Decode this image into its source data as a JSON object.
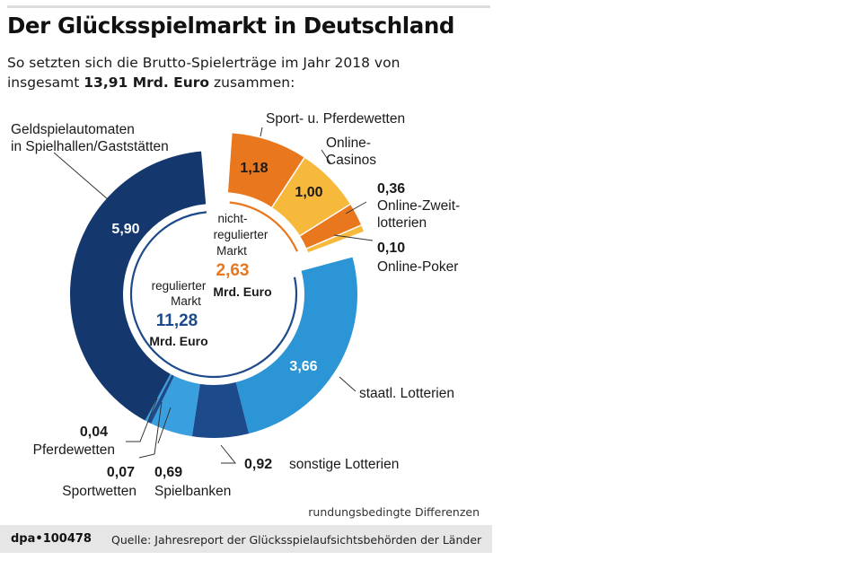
{
  "header": {
    "title": "Der Glücksspielmarkt in Deutschland",
    "subtitle_line1": "So setzten sich die Brutto-Spielerträge im Jahr 2018 von",
    "subtitle_pre": "insgesamt ",
    "subtitle_bold": "13,91 Mrd. Euro",
    "subtitle_post": " zusammen:"
  },
  "chart_data": {
    "type": "pie",
    "variant": "donut",
    "title": "Der Glücksspielmarkt in Deutschland",
    "unit": "Mrd. Euro",
    "total": 13.91,
    "groups": [
      {
        "name": "regulierter Markt",
        "label_line1": "regulierter",
        "label_line2": "Markt",
        "total": 11.28,
        "total_text": "11,28",
        "unit_text": "Mrd. Euro",
        "segments": [
          {
            "name": "Geldspielautomaten in Spielhallen/Gaststätten",
            "label_line1": "Geldspielautomaten",
            "label_line2": "in Spielhallen/Gaststätten",
            "value": 5.9,
            "value_text": "5,90",
            "color": "#14376e"
          },
          {
            "name": "staatl. Lotterien",
            "value": 3.66,
            "value_text": "3,66",
            "color": "#2b95d6"
          },
          {
            "name": "sonstige Lotterien",
            "value": 0.92,
            "value_text": "0,92",
            "color": "#1d4a8a"
          },
          {
            "name": "Spielbanken",
            "value": 0.69,
            "value_text": "0,69",
            "color": "#3a9fde"
          },
          {
            "name": "Sportwetten",
            "value": 0.07,
            "value_text": "0,07",
            "color": "#1d4a8a"
          },
          {
            "name": "Pferdewetten",
            "value": 0.04,
            "value_text": "0,04",
            "color": "#3a9fde"
          }
        ]
      },
      {
        "name": "nicht-regulierter Markt",
        "label_line1": "nicht-",
        "label_line2": "regulierter",
        "label_line3": "Markt",
        "total": 2.63,
        "total_text": "2,63",
        "unit_text": "Mrd. Euro",
        "segments": [
          {
            "name": "Sport- u. Pferdewetten",
            "value": 1.18,
            "value_text": "1,18",
            "color": "#e8771e"
          },
          {
            "name": "Online-Casinos",
            "label_line1": "Online-",
            "label_line2": "Casinos",
            "value": 1.0,
            "value_text": "1,00",
            "color": "#f6b93b"
          },
          {
            "name": "Online-Zweitlotterien",
            "label_line1": "Online-Zweit-",
            "label_line2": "lotterien",
            "value": 0.36,
            "value_text": "0,36",
            "color": "#e8771e"
          },
          {
            "name": "Online-Poker",
            "value": 0.1,
            "value_text": "0,10",
            "color": "#f6b93b"
          }
        ]
      }
    ]
  },
  "colors": {
    "regulated_text": "#1d4a8a",
    "unregulated_text": "#e8771e",
    "inner_ring_regulated": "#1d4a8a",
    "inner_ring_unregulated": "#e8771e",
    "segment_text_light": "#ffffff",
    "segment_text_dark": "#1a1a1a"
  },
  "note": "rundungsbedingte Differenzen",
  "footer": {
    "id": "dpa•100478",
    "source": "Quelle: Jahresreport der Glücksspielaufsichtsbehörden der Länder"
  }
}
